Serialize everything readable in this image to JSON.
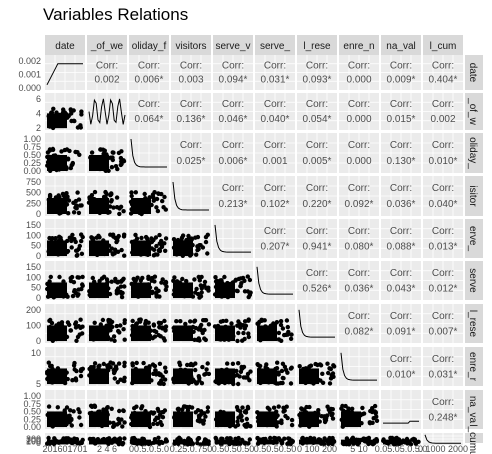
{
  "title": "Variables Relations",
  "chart_data": {
    "type": "scatter-matrix",
    "title": "Variables Relations",
    "variables": [
      "date",
      "_of_we",
      "oliday_f",
      "visitors",
      "serve_v",
      "serve_",
      "l_rese",
      "enre_n",
      "na_val",
      "l_cum"
    ],
    "right_strips": [
      "date",
      "_of_w",
      "oliday_",
      "isitor",
      "erve_",
      "serve",
      "l_rese",
      "enre_r",
      "na_va",
      "l_cumu"
    ],
    "correlations": [
      {
        "row": 0,
        "col": 1,
        "label": "Corr:",
        "value": "0.002"
      },
      {
        "row": 0,
        "col": 2,
        "label": "Corr:",
        "value": "0.006*"
      },
      {
        "row": 0,
        "col": 3,
        "label": "Corr:",
        "value": "0.003"
      },
      {
        "row": 0,
        "col": 4,
        "label": "Corr:",
        "value": "0.094*"
      },
      {
        "row": 0,
        "col": 5,
        "label": "Corr:",
        "value": "0.031*"
      },
      {
        "row": 0,
        "col": 6,
        "label": "Corr:",
        "value": "0.093*"
      },
      {
        "row": 0,
        "col": 7,
        "label": "Corr:",
        "value": "0.000"
      },
      {
        "row": 0,
        "col": 8,
        "label": "Corr:",
        "value": "0.009*"
      },
      {
        "row": 0,
        "col": 9,
        "label": "Corr:",
        "value": "0.404*"
      },
      {
        "row": 1,
        "col": 2,
        "label": "Corr:",
        "value": "0.064*"
      },
      {
        "row": 1,
        "col": 3,
        "label": "Corr:",
        "value": "0.136*"
      },
      {
        "row": 1,
        "col": 4,
        "label": "Corr:",
        "value": "0.046*"
      },
      {
        "row": 1,
        "col": 5,
        "label": "Corr:",
        "value": "0.040*"
      },
      {
        "row": 1,
        "col": 6,
        "label": "Corr:",
        "value": "0.054*"
      },
      {
        "row": 1,
        "col": 7,
        "label": "Corr:",
        "value": "0.000"
      },
      {
        "row": 1,
        "col": 8,
        "label": "Corr:",
        "value": "0.015*"
      },
      {
        "row": 1,
        "col": 9,
        "label": "Corr:",
        "value": "0.002"
      },
      {
        "row": 2,
        "col": 3,
        "label": "Corr:",
        "value": "0.025*"
      },
      {
        "row": 2,
        "col": 4,
        "label": "Corr:",
        "value": "0.006*"
      },
      {
        "row": 2,
        "col": 5,
        "label": "Corr:",
        "value": "0.001"
      },
      {
        "row": 2,
        "col": 6,
        "label": "Corr:",
        "value": "0.005*"
      },
      {
        "row": 2,
        "col": 7,
        "label": "Corr:",
        "value": "0.000"
      },
      {
        "row": 2,
        "col": 8,
        "label": "Corr:",
        "value": "0.130*"
      },
      {
        "row": 2,
        "col": 9,
        "label": "Corr:",
        "value": "0.010*"
      },
      {
        "row": 3,
        "col": 4,
        "label": "Corr:",
        "value": "0.213*"
      },
      {
        "row": 3,
        "col": 5,
        "label": "Corr:",
        "value": "0.102*"
      },
      {
        "row": 3,
        "col": 6,
        "label": "Corr:",
        "value": "0.220*"
      },
      {
        "row": 3,
        "col": 7,
        "label": "Corr:",
        "value": "0.092*"
      },
      {
        "row": 3,
        "col": 8,
        "label": "Corr:",
        "value": "0.036*"
      },
      {
        "row": 3,
        "col": 9,
        "label": "Corr:",
        "value": "0.040*"
      },
      {
        "row": 4,
        "col": 5,
        "label": "Corr:",
        "value": "0.207*"
      },
      {
        "row": 4,
        "col": 6,
        "label": "Corr:",
        "value": "0.941*"
      },
      {
        "row": 4,
        "col": 7,
        "label": "Corr:",
        "value": "0.080*"
      },
      {
        "row": 4,
        "col": 8,
        "label": "Corr:",
        "value": "0.088*"
      },
      {
        "row": 4,
        "col": 9,
        "label": "Corr:",
        "value": "0.013*"
      },
      {
        "row": 5,
        "col": 6,
        "label": "Corr:",
        "value": "0.526*"
      },
      {
        "row": 5,
        "col": 7,
        "label": "Corr:",
        "value": "0.036*"
      },
      {
        "row": 5,
        "col": 8,
        "label": "Corr:",
        "value": "0.043*"
      },
      {
        "row": 5,
        "col": 9,
        "label": "Corr:",
        "value": "0.012*"
      },
      {
        "row": 6,
        "col": 7,
        "label": "Corr:",
        "value": "0.082*"
      },
      {
        "row": 6,
        "col": 8,
        "label": "Corr:",
        "value": "0.091*"
      },
      {
        "row": 6,
        "col": 9,
        "label": "Corr:",
        "value": "0.007*"
      },
      {
        "row": 7,
        "col": 8,
        "label": "Corr:",
        "value": "0.010*"
      },
      {
        "row": 7,
        "col": 9,
        "label": "Corr:",
        "value": "0.031*"
      },
      {
        "row": 8,
        "col": 9,
        "label": "Corr:",
        "value": "0.248*"
      }
    ],
    "y_tick_labels": [
      [
        "0.002",
        "0.001",
        "0.000"
      ],
      [
        "6",
        "4",
        "2"
      ],
      [
        "1.00",
        "0.75",
        "0.50",
        "0.25",
        "0.00"
      ],
      [
        "750",
        "500",
        "250",
        "0"
      ],
      [
        "150",
        "100",
        "50",
        "0"
      ],
      [
        "150",
        "100",
        "50",
        "0"
      ],
      [
        "200",
        "100",
        "0"
      ],
      [
        "10",
        "5"
      ],
      [
        "1.00",
        "0.75",
        "0.50",
        "0.25",
        "0.00"
      ],
      [
        "300",
        "200",
        "100",
        "0"
      ]
    ],
    "x_tick_text": [
      "201601701",
      "2 4 6",
      "00.5.0.5.0",
      "0.25.0.750",
      "0.50.50.50",
      "0.50.50.50",
      "0 100 200",
      "5 10",
      "0.05.05.0.5.0",
      "0 1000 2000"
    ],
    "grid": true,
    "colors": {
      "panel": "#ebebeb",
      "strip": "#d9d9d9",
      "grid": "#ffffff",
      "points": "#000000"
    }
  }
}
